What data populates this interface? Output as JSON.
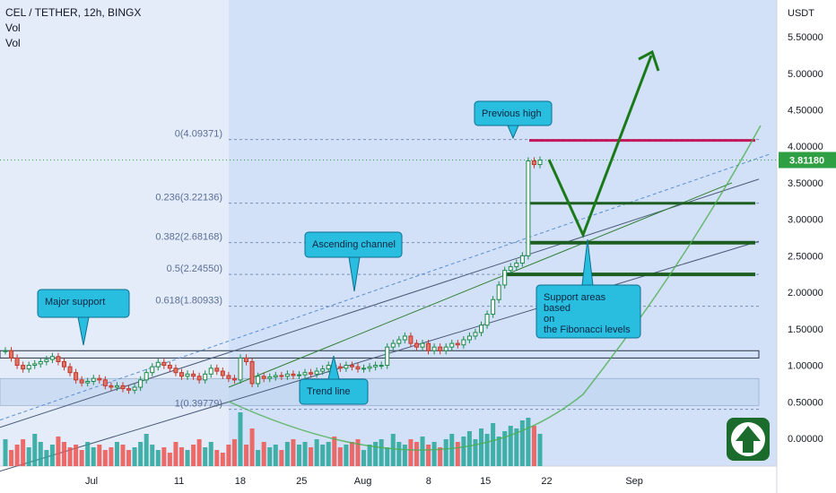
{
  "header": {
    "symbol": "CEL / TETHER, 12h, BINGX",
    "indicators": [
      "Vol",
      "Vol"
    ]
  },
  "chart_data": {
    "type": "candlestick",
    "currency_label": "USDT",
    "current_price_label": "3.81180",
    "y_ticks": [
      "5.50000",
      "5.00000",
      "4.50000",
      "4.00000",
      "3.50000",
      "3.00000",
      "2.50000",
      "2.00000",
      "1.50000",
      "1.00000",
      "0.50000",
      "0.00000"
    ],
    "y_tick_values": [
      5.5,
      5.0,
      4.5,
      4.0,
      3.5,
      3.0,
      2.5,
      2.0,
      1.5,
      1.0,
      0.5,
      0.0
    ],
    "y_range": [
      -0.45,
      5.85
    ],
    "x_range": [
      -21,
      40
    ],
    "x_ticks": [
      {
        "label": "Jul",
        "day": 0
      },
      {
        "label": "11",
        "day": 10
      },
      {
        "label": "18",
        "day": 17
      },
      {
        "label": "25",
        "day": 24
      },
      {
        "label": "Aug",
        "day": 31
      },
      {
        "label": "8",
        "day": 38.5
      },
      {
        "label": "15",
        "day": 45
      },
      {
        "label": "22",
        "day": 52
      },
      {
        "label": "Sep",
        "day": 62
      }
    ],
    "fib_levels": [
      {
        "label": "0(4.09371)",
        "value": 4.09371
      },
      {
        "label": "0.236(3.22136)",
        "value": 3.22136
      },
      {
        "label": "0.382(2.68168)",
        "value": 2.68168
      },
      {
        "label": "0.5(2.24550)",
        "value": 2.2455
      },
      {
        "label": "0.618(1.80933)",
        "value": 1.80933
      },
      {
        "label": "1(0.39779)",
        "value": 0.39779
      }
    ],
    "closes": [
      1.2,
      1.1,
      1.0,
      0.95,
      1.0,
      1.02,
      1.05,
      1.08,
      1.12,
      1.05,
      0.98,
      0.9,
      0.8,
      0.76,
      0.78,
      0.82,
      0.8,
      0.72,
      0.7,
      0.72,
      0.68,
      0.66,
      0.7,
      0.8,
      0.9,
      0.98,
      1.04,
      1.0,
      0.96,
      0.9,
      0.85,
      0.88,
      0.85,
      0.8,
      0.88,
      0.96,
      0.92,
      0.86,
      0.82,
      0.8,
      1.1,
      1.05,
      0.75,
      0.85,
      0.82,
      0.84,
      0.86,
      0.85,
      0.88,
      0.86,
      0.87,
      0.9,
      0.88,
      0.92,
      0.95,
      1.0,
      0.98,
      0.96,
      1.0,
      0.98,
      0.95,
      0.96,
      0.98,
      1.0,
      1.0,
      1.25,
      1.3,
      1.35,
      1.4,
      1.3,
      1.25,
      1.3,
      1.2,
      1.25,
      1.2,
      1.25,
      1.3,
      1.28,
      1.35,
      1.4,
      1.45,
      1.55,
      1.7,
      1.9,
      2.1,
      2.3,
      2.35,
      2.4,
      2.5,
      3.8,
      3.75,
      3.81
    ],
    "volumes": [
      10,
      6,
      8,
      10,
      7,
      12,
      9,
      6,
      8,
      11,
      9,
      7,
      8,
      6,
      9,
      7,
      8,
      6,
      7,
      9,
      8,
      6,
      7,
      9,
      12,
      8,
      6,
      7,
      5,
      9,
      7,
      6,
      8,
      10,
      7,
      9,
      6,
      5,
      8,
      10,
      20,
      8,
      14,
      6,
      9,
      7,
      8,
      6,
      9,
      10,
      8,
      9,
      7,
      10,
      8,
      9,
      11,
      7,
      8,
      9,
      10,
      6,
      8,
      9,
      10,
      7,
      12,
      9,
      8,
      10,
      9,
      11,
      8,
      9,
      7,
      10,
      12,
      9,
      11,
      13,
      10,
      14,
      12,
      16,
      11,
      13,
      15,
      14,
      17,
      18,
      15,
      12
    ],
    "annotations": {
      "previous_high": "Previous high",
      "ascending_channel": "Ascending channel",
      "major_support": "Major support",
      "trend_line": "Trend line",
      "support_areas": [
        "Support areas",
        " based",
        " on",
        "the Fibonacci levels"
      ]
    },
    "colors": {
      "up": "#26a69a",
      "down": "#ef5350",
      "shade": "#cfe0f6",
      "callout": "#29bde0",
      "arrow": "#1a7a1a",
      "top_line": "#c2185b"
    }
  }
}
